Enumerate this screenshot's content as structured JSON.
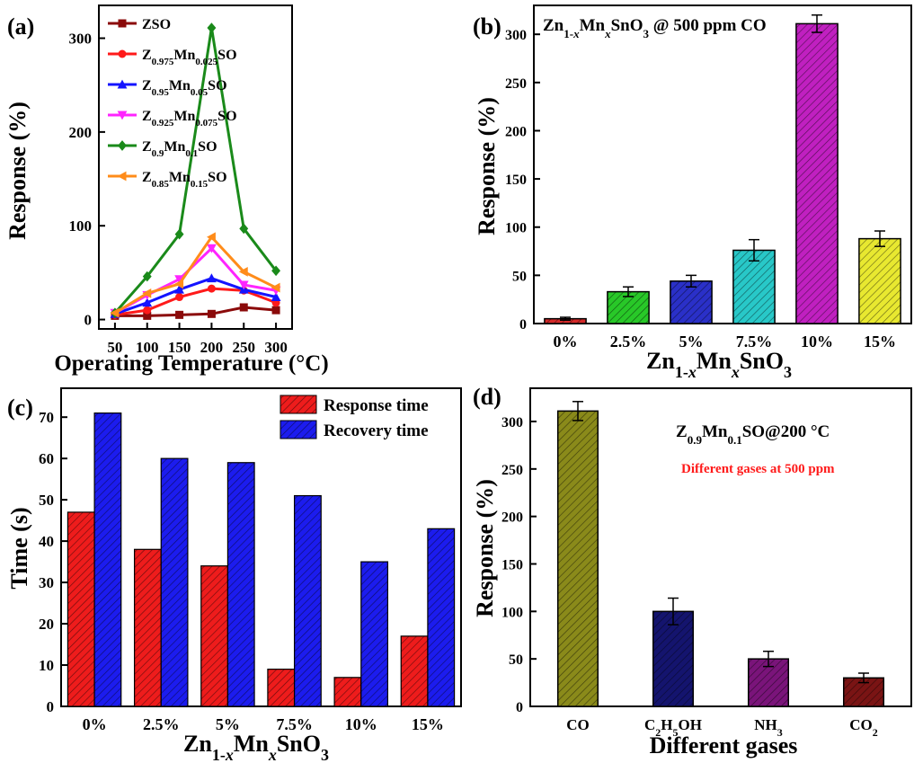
{
  "figure": {
    "colors": {
      "axis": "#000000",
      "red_note": "#ff1a1a"
    }
  },
  "chart_data": [
    {
      "panel_label": "(a)",
      "type": "line",
      "xlabel": "Operating Temperature (°C)",
      "ylabel": "Response (%)",
      "x": [
        50,
        100,
        150,
        200,
        250,
        300
      ],
      "xticks": [
        "50",
        "100",
        "150",
        "200",
        "250",
        "300"
      ],
      "yticks": [
        "0",
        "100",
        "200",
        "300"
      ],
      "xlim": [
        25,
        325
      ],
      "ylim": [
        -10,
        335
      ],
      "grid": false,
      "legend_position": "top-left",
      "series": [
        {
          "name": "ZSO",
          "legend_parts": [
            [
              "ZSO",
              ""
            ]
          ],
          "color": "#8b0a0a",
          "marker": "square",
          "values": [
            4,
            4,
            5,
            6,
            13,
            10
          ]
        },
        {
          "name": "Z0.975Mn0.025SO",
          "legend_parts": [
            [
              "Z",
              ""
            ],
            [
              "0.975",
              "sub"
            ],
            [
              "Mn",
              ""
            ],
            [
              "0.025",
              "sub"
            ],
            [
              "SO",
              ""
            ]
          ],
          "color": "#ff1a1a",
          "marker": "circle",
          "values": [
            5,
            10,
            24,
            33,
            31,
            18
          ]
        },
        {
          "name": "Z0.95Mn0.05SO",
          "legend_parts": [
            [
              "Z",
              ""
            ],
            [
              "0.95",
              "sub"
            ],
            [
              "Mn",
              ""
            ],
            [
              "0.05",
              "sub"
            ],
            [
              "SO",
              ""
            ]
          ],
          "color": "#1414ff",
          "marker": "triangle-up",
          "values": [
            6,
            18,
            32,
            44,
            32,
            24
          ]
        },
        {
          "name": "Z0.925Mn0.075SO",
          "legend_parts": [
            [
              "Z",
              ""
            ],
            [
              "0.925",
              "sub"
            ],
            [
              "Mn",
              ""
            ],
            [
              "0.075",
              "sub"
            ],
            [
              "SO",
              ""
            ]
          ],
          "color": "#ff24ff",
          "marker": "triangle-down",
          "values": [
            7,
            26,
            43,
            76,
            37,
            31
          ]
        },
        {
          "name": "Z0.9Mn0.1SO",
          "legend_parts": [
            [
              "Z",
              ""
            ],
            [
              "0.9",
              "sub"
            ],
            [
              "Mn",
              ""
            ],
            [
              "0.1",
              "sub"
            ],
            [
              "SO",
              ""
            ]
          ],
          "color": "#1a8a1a",
          "marker": "diamond",
          "values": [
            7,
            46,
            91,
            311,
            97,
            52
          ]
        },
        {
          "name": "Z0.85Mn0.15SO",
          "legend_parts": [
            [
              "Z",
              ""
            ],
            [
              "0.85",
              "sub"
            ],
            [
              "Mn",
              ""
            ],
            [
              "0.15",
              "sub"
            ],
            [
              "SO",
              ""
            ]
          ],
          "color": "#ff8c1a",
          "marker": "triangle-left",
          "values": [
            7,
            28,
            38,
            88,
            51,
            34
          ]
        }
      ]
    },
    {
      "panel_label": "(b)",
      "type": "bar",
      "title_parts": [
        [
          "Zn",
          ""
        ],
        [
          "1-",
          "sub"
        ],
        [
          "x",
          "subital"
        ],
        [
          "Mn",
          ""
        ],
        [
          "x",
          "subital"
        ],
        [
          "SnO",
          ""
        ],
        [
          "3",
          "sub"
        ],
        [
          " @ 500 ppm CO",
          ""
        ]
      ],
      "xlabel_parts": [
        [
          "Zn",
          ""
        ],
        [
          "1-",
          "sub"
        ],
        [
          "x",
          "subital"
        ],
        [
          "Mn",
          ""
        ],
        [
          "x",
          "subital"
        ],
        [
          "SnO",
          ""
        ],
        [
          "3",
          "sub"
        ]
      ],
      "ylabel": "Response (%)",
      "categories": [
        "0%",
        "2.5%",
        "5%",
        "7.5%",
        "10%",
        "15%"
      ],
      "values": [
        5,
        33,
        44,
        76,
        311,
        88
      ],
      "errors": [
        1.5,
        5,
        6,
        11,
        9,
        8
      ],
      "colors": [
        "#d42a2a",
        "#28c828",
        "#2a30c8",
        "#28c8c8",
        "#c020c0",
        "#e8e830"
      ],
      "yticks": [
        "0",
        "50",
        "100",
        "150",
        "200",
        "250",
        "300"
      ],
      "ylim": [
        0,
        330
      ],
      "grid": false
    },
    {
      "panel_label": "(c)",
      "type": "bar",
      "xlabel_parts": [
        [
          "Zn",
          ""
        ],
        [
          "1-",
          "sub"
        ],
        [
          "x",
          "subital"
        ],
        [
          "Mn",
          ""
        ],
        [
          "x",
          "subital"
        ],
        [
          "SnO",
          ""
        ],
        [
          "3",
          "sub"
        ]
      ],
      "ylabel": "Time (s)",
      "categories": [
        "0%",
        "2.5%",
        "5%",
        "7.5%",
        "10%",
        "15%"
      ],
      "series": [
        {
          "name": "Response time",
          "color": "#ee1c1c",
          "values": [
            47,
            38,
            34,
            9,
            7,
            17
          ]
        },
        {
          "name": "Recovery time",
          "color": "#1c1cee",
          "values": [
            71,
            60,
            59,
            51,
            35,
            43
          ]
        }
      ],
      "yticks": [
        "0",
        "10",
        "20",
        "30",
        "40",
        "50",
        "60",
        "70"
      ],
      "ylim": [
        0,
        77
      ],
      "grid": false,
      "legend_position": "top-right"
    },
    {
      "panel_label": "(d)",
      "type": "bar",
      "xlabel": "Different gases",
      "ylabel": "Response (%)",
      "categories": [
        "CO",
        "C2H5OH",
        "NH3",
        "CO2"
      ],
      "category_parts": [
        [
          [
            "CO",
            ""
          ]
        ],
        [
          [
            "C",
            ""
          ],
          [
            "2",
            "sub"
          ],
          [
            "H",
            ""
          ],
          [
            "5",
            "sub"
          ],
          [
            "OH",
            ""
          ]
        ],
        [
          [
            "NH",
            ""
          ],
          [
            "3",
            "sub"
          ]
        ],
        [
          [
            "CO",
            ""
          ],
          [
            "2",
            "sub"
          ]
        ]
      ],
      "values": [
        311,
        100,
        50,
        30
      ],
      "errors": [
        10,
        14,
        8,
        5
      ],
      "colors": [
        "#8a8a1a",
        "#14146e",
        "#7a147a",
        "#7a1414"
      ],
      "annotation_parts": [
        [
          "Z",
          ""
        ],
        [
          "0.9",
          "sub"
        ],
        [
          "Mn",
          ""
        ],
        [
          "0.1",
          "sub"
        ],
        [
          "SO@200 °C",
          ""
        ]
      ],
      "annotation2": "Different gases at 500 ppm",
      "yticks": [
        "0",
        "50",
        "100",
        "150",
        "200",
        "250",
        "300"
      ],
      "ylim": [
        0,
        335
      ],
      "grid": false
    }
  ]
}
